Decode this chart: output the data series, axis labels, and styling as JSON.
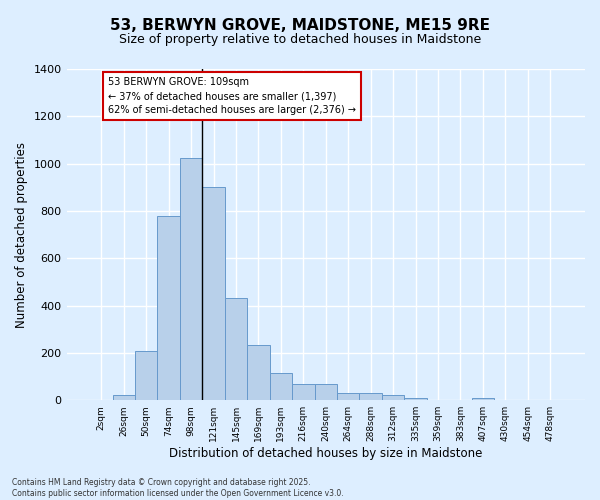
{
  "title": "53, BERWYN GROVE, MAIDSTONE, ME15 9RE",
  "subtitle": "Size of property relative to detached houses in Maidstone",
  "xlabel": "Distribution of detached houses by size in Maidstone",
  "ylabel": "Number of detached properties",
  "categories": [
    "2sqm",
    "26sqm",
    "50sqm",
    "74sqm",
    "98sqm",
    "121sqm",
    "145sqm",
    "169sqm",
    "193sqm",
    "216sqm",
    "240sqm",
    "264sqm",
    "288sqm",
    "312sqm",
    "335sqm",
    "359sqm",
    "383sqm",
    "407sqm",
    "430sqm",
    "454sqm",
    "478sqm"
  ],
  "values": [
    0,
    22,
    210,
    780,
    1025,
    900,
    430,
    235,
    115,
    70,
    70,
    30,
    30,
    22,
    10,
    0,
    0,
    10,
    0,
    0,
    0
  ],
  "bar_color": "#b8d0ea",
  "bar_edge_color": "#6699cc",
  "annotation_text_lines": [
    "53 BERWYN GROVE: 109sqm",
    "← 37% of detached houses are smaller (1,397)",
    "62% of semi-detached houses are larger (2,376) →"
  ],
  "annotation_box_color": "#ffffff",
  "annotation_box_edge_color": "#cc0000",
  "vline_color": "#000000",
  "background_color": "#ddeeff",
  "grid_color": "#ffffff",
  "ylim": [
    0,
    1400
  ],
  "yticks": [
    0,
    200,
    400,
    600,
    800,
    1000,
    1200,
    1400
  ],
  "footer": "Contains HM Land Registry data © Crown copyright and database right 2025.\nContains public sector information licensed under the Open Government Licence v3.0.",
  "title_fontsize": 11,
  "subtitle_fontsize": 9,
  "xlabel_fontsize": 8.5,
  "ylabel_fontsize": 8.5,
  "vline_bar_index": 4.5
}
